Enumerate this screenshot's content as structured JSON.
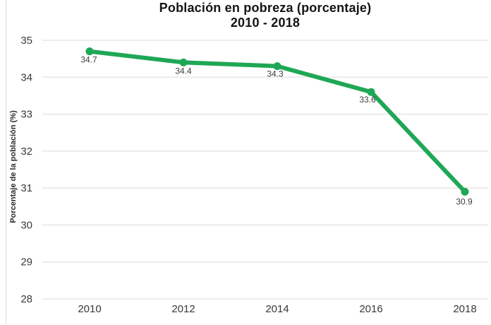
{
  "chart": {
    "title_line1": "Población en pobreza (porcentaje)",
    "title_line2": "2010 - 2018",
    "y_axis_title": "Porcentaje de la población (%)"
  },
  "chart_data": {
    "type": "line",
    "title": "Población en pobreza (porcentaje) 2010 - 2018",
    "xlabel": "",
    "ylabel": "Porcentaje de la población (%)",
    "categories": [
      "2010",
      "2012",
      "2014",
      "2016",
      "2018"
    ],
    "values": [
      34.7,
      34.4,
      34.3,
      33.6,
      30.9
    ],
    "point_labels": [
      "34.7",
      "34.4",
      "34.3",
      "33.6",
      "30.9"
    ],
    "ylim": [
      28,
      35
    ],
    "yticks": [
      35,
      34,
      33,
      32,
      31,
      30,
      29,
      28
    ],
    "grid": true,
    "legend": "none",
    "line_color": "#1fa755",
    "marker_color": "#1fa755",
    "gridline_color": "#e7e7e7"
  }
}
